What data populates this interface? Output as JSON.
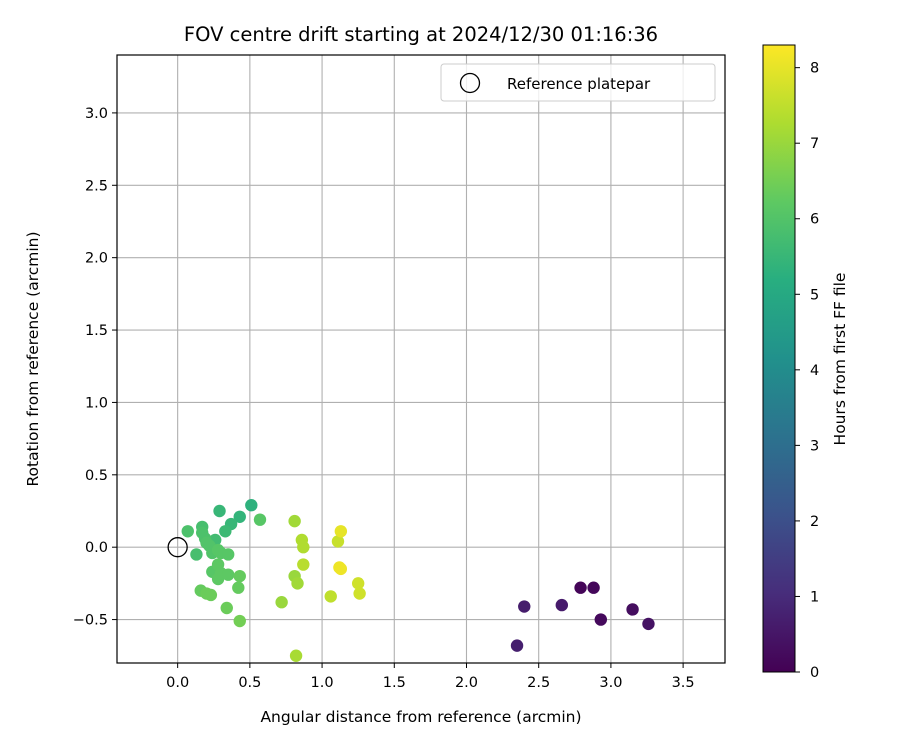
{
  "chart_data": {
    "type": "scatter",
    "title": "FOV centre drift starting at 2024/12/30 01:16:36",
    "xlabel": "Angular distance from reference (arcmin)",
    "ylabel": "Rotation from reference (arcmin)",
    "xlim": [
      -0.42,
      3.79
    ],
    "ylim": [
      -0.8,
      3.4
    ],
    "xticks": [
      0.0,
      0.5,
      1.0,
      1.5,
      2.0,
      2.5,
      3.0,
      3.5
    ],
    "xtick_labels": [
      "0.0",
      "0.5",
      "1.0",
      "1.5",
      "2.0",
      "2.5",
      "3.0",
      "3.5"
    ],
    "yticks": [
      -0.5,
      0.0,
      0.5,
      1.0,
      1.5,
      2.0,
      2.5,
      3.0
    ],
    "ytick_labels": [
      "−0.5",
      "0.0",
      "0.5",
      "1.0",
      "1.5",
      "2.0",
      "2.5",
      "3.0"
    ],
    "grid": true,
    "legend": {
      "placement": "top-right",
      "entries": [
        "Reference platepar"
      ]
    },
    "reference_point": {
      "x": 0.0,
      "y": 0.0,
      "label": "Reference platepar"
    },
    "colorbar": {
      "label": "Hours from first FF file",
      "colormap": "viridis",
      "range": [
        0,
        8.3
      ],
      "ticks": [
        0,
        1,
        2,
        3,
        4,
        5,
        6,
        7,
        8
      ],
      "tick_labels": [
        "0",
        "1",
        "2",
        "3",
        "4",
        "5",
        "6",
        "7",
        "8"
      ]
    },
    "points": [
      {
        "x": 2.79,
        "y": -0.28,
        "c": 0.1
      },
      {
        "x": 2.88,
        "y": -0.28,
        "c": 0.15
      },
      {
        "x": 2.93,
        "y": -0.5,
        "c": 0.2
      },
      {
        "x": 3.15,
        "y": -0.43,
        "c": 0.3
      },
      {
        "x": 3.26,
        "y": -0.53,
        "c": 0.4
      },
      {
        "x": 2.66,
        "y": -0.4,
        "c": 0.6
      },
      {
        "x": 2.4,
        "y": -0.41,
        "c": 0.65
      },
      {
        "x": 2.35,
        "y": -0.68,
        "c": 0.7
      },
      {
        "x": 0.51,
        "y": 0.29,
        "c": 5.3
      },
      {
        "x": 0.43,
        "y": 0.21,
        "c": 5.4
      },
      {
        "x": 0.29,
        "y": 0.25,
        "c": 5.5
      },
      {
        "x": 0.37,
        "y": 0.16,
        "c": 5.5
      },
      {
        "x": 0.33,
        "y": 0.11,
        "c": 5.6
      },
      {
        "x": 0.26,
        "y": 0.05,
        "c": 5.7
      },
      {
        "x": 0.13,
        "y": -0.05,
        "c": 5.8
      },
      {
        "x": 0.17,
        "y": 0.14,
        "c": 5.8
      },
      {
        "x": 0.17,
        "y": 0.1,
        "c": 5.9
      },
      {
        "x": 0.19,
        "y": 0.06,
        "c": 5.9
      },
      {
        "x": 0.07,
        "y": 0.11,
        "c": 5.9
      },
      {
        "x": 0.2,
        "y": 0.03,
        "c": 6.0
      },
      {
        "x": 0.22,
        "y": 0.01,
        "c": 6.0
      },
      {
        "x": 0.24,
        "y": -0.04,
        "c": 6.0
      },
      {
        "x": 0.28,
        "y": -0.02,
        "c": 6.1
      },
      {
        "x": 0.3,
        "y": -0.04,
        "c": 6.1
      },
      {
        "x": 0.35,
        "y": -0.05,
        "c": 6.1
      },
      {
        "x": 0.57,
        "y": 0.19,
        "c": 6.1
      },
      {
        "x": 0.24,
        "y": -0.17,
        "c": 6.1
      },
      {
        "x": 0.28,
        "y": -0.12,
        "c": 6.2
      },
      {
        "x": 0.28,
        "y": -0.22,
        "c": 6.2
      },
      {
        "x": 0.3,
        "y": -0.18,
        "c": 6.2
      },
      {
        "x": 0.35,
        "y": -0.19,
        "c": 6.2
      },
      {
        "x": 0.42,
        "y": -0.28,
        "c": 6.3
      },
      {
        "x": 0.43,
        "y": -0.2,
        "c": 6.3
      },
      {
        "x": 0.16,
        "y": -0.3,
        "c": 6.3
      },
      {
        "x": 0.2,
        "y": -0.32,
        "c": 6.4
      },
      {
        "x": 0.23,
        "y": -0.33,
        "c": 6.4
      },
      {
        "x": 0.34,
        "y": -0.42,
        "c": 6.4
      },
      {
        "x": 0.43,
        "y": -0.51,
        "c": 6.5
      },
      {
        "x": 0.72,
        "y": -0.38,
        "c": 7.0
      },
      {
        "x": 0.81,
        "y": -0.2,
        "c": 7.0
      },
      {
        "x": 0.83,
        "y": -0.25,
        "c": 7.1
      },
      {
        "x": 0.81,
        "y": 0.18,
        "c": 7.1
      },
      {
        "x": 0.82,
        "y": -0.75,
        "c": 7.2
      },
      {
        "x": 0.86,
        "y": 0.05,
        "c": 7.3
      },
      {
        "x": 0.87,
        "y": 0.0,
        "c": 7.3
      },
      {
        "x": 0.87,
        "y": -0.12,
        "c": 7.4
      },
      {
        "x": 1.06,
        "y": -0.34,
        "c": 7.5
      },
      {
        "x": 1.11,
        "y": 0.04,
        "c": 7.6
      },
      {
        "x": 1.25,
        "y": -0.25,
        "c": 7.7
      },
      {
        "x": 1.26,
        "y": -0.32,
        "c": 7.7
      },
      {
        "x": 1.13,
        "y": 0.11,
        "c": 8.0
      },
      {
        "x": 1.12,
        "y": -0.14,
        "c": 8.1
      },
      {
        "x": 1.13,
        "y": -0.15,
        "c": 8.1
      }
    ]
  }
}
